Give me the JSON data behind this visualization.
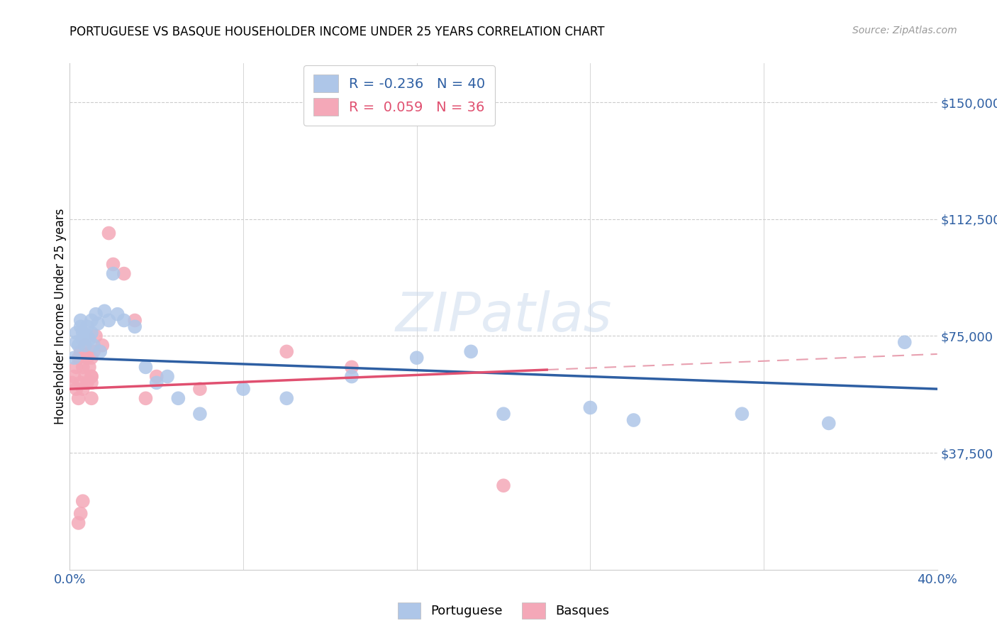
{
  "title": "PORTUGUESE VS BASQUE HOUSEHOLDER INCOME UNDER 25 YEARS CORRELATION CHART",
  "source": "Source: ZipAtlas.com",
  "ylabel": "Householder Income Under 25 years",
  "xlim": [
    0.0,
    0.4
  ],
  "ylim": [
    0,
    162500
  ],
  "xticks": [
    0.0,
    0.08,
    0.16,
    0.24,
    0.32,
    0.4
  ],
  "xtick_labels": [
    "0.0%",
    "",
    "",
    "",
    "",
    "40.0%"
  ],
  "ytick_labels": [
    "$37,500",
    "$75,000",
    "$112,500",
    "$150,000"
  ],
  "ytick_values": [
    37500,
    75000,
    112500,
    150000
  ],
  "portuguese_R": "-0.236",
  "portuguese_N": "40",
  "basque_R": "0.059",
  "basque_N": "36",
  "portuguese_color": "#aec6e8",
  "portuguese_line_color": "#2e5fa3",
  "basque_color": "#f4a8b8",
  "basque_line_color": "#e05070",
  "basque_extrap_color": "#e8a0b0",
  "portuguese_x": [
    0.002,
    0.003,
    0.003,
    0.004,
    0.005,
    0.005,
    0.006,
    0.006,
    0.007,
    0.008,
    0.008,
    0.009,
    0.01,
    0.01,
    0.011,
    0.012,
    0.013,
    0.014,
    0.016,
    0.018,
    0.02,
    0.022,
    0.025,
    0.03,
    0.035,
    0.04,
    0.045,
    0.05,
    0.06,
    0.08,
    0.1,
    0.13,
    0.16,
    0.185,
    0.2,
    0.24,
    0.26,
    0.31,
    0.35,
    0.385
  ],
  "portuguese_y": [
    68000,
    73000,
    76000,
    72000,
    78000,
    80000,
    74000,
    76000,
    72000,
    75000,
    78000,
    74000,
    76000,
    80000,
    72000,
    82000,
    79000,
    70000,
    83000,
    80000,
    95000,
    82000,
    80000,
    78000,
    65000,
    60000,
    62000,
    55000,
    50000,
    58000,
    55000,
    62000,
    68000,
    70000,
    50000,
    52000,
    48000,
    50000,
    47000,
    73000
  ],
  "basque_x": [
    0.001,
    0.002,
    0.003,
    0.003,
    0.004,
    0.004,
    0.005,
    0.005,
    0.006,
    0.006,
    0.007,
    0.007,
    0.008,
    0.008,
    0.009,
    0.01,
    0.01,
    0.011,
    0.012,
    0.015,
    0.018,
    0.02,
    0.025,
    0.03,
    0.2,
    0.01,
    0.01,
    0.01,
    0.1,
    0.13,
    0.06,
    0.04,
    0.035,
    0.006,
    0.005,
    0.004
  ],
  "basque_y": [
    60000,
    62000,
    58000,
    65000,
    55000,
    68000,
    60000,
    70000,
    58000,
    65000,
    62000,
    72000,
    60000,
    68000,
    65000,
    62000,
    68000,
    70000,
    75000,
    72000,
    108000,
    98000,
    95000,
    80000,
    27000,
    60000,
    55000,
    62000,
    70000,
    65000,
    58000,
    62000,
    55000,
    22000,
    18000,
    15000
  ]
}
